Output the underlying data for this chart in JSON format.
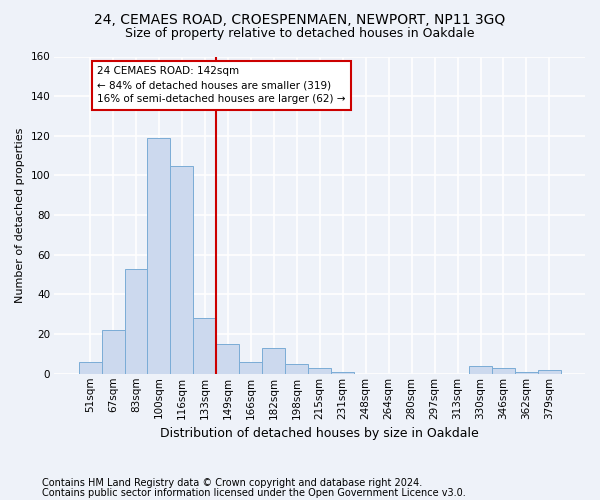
{
  "title1": "24, CEMAES ROAD, CROESPENMAEN, NEWPORT, NP11 3GQ",
  "title2": "Size of property relative to detached houses in Oakdale",
  "xlabel": "Distribution of detached houses by size in Oakdale",
  "ylabel": "Number of detached properties",
  "footnote1": "Contains HM Land Registry data © Crown copyright and database right 2024.",
  "footnote2": "Contains public sector information licensed under the Open Government Licence v3.0.",
  "bar_labels": [
    "51sqm",
    "67sqm",
    "83sqm",
    "100sqm",
    "116sqm",
    "133sqm",
    "149sqm",
    "166sqm",
    "182sqm",
    "198sqm",
    "215sqm",
    "231sqm",
    "248sqm",
    "264sqm",
    "280sqm",
    "297sqm",
    "313sqm",
    "330sqm",
    "346sqm",
    "362sqm",
    "379sqm"
  ],
  "bar_values": [
    6,
    22,
    53,
    119,
    105,
    28,
    15,
    6,
    13,
    5,
    3,
    1,
    0,
    0,
    0,
    0,
    0,
    4,
    3,
    1,
    2
  ],
  "bar_color": "#ccd9ee",
  "bar_edge_color": "#7aacd6",
  "vline_color": "#cc0000",
  "annotation_line1": "24 CEMAES ROAD: 142sqm",
  "annotation_line2": "← 84% of detached houses are smaller (319)",
  "annotation_line3": "16% of semi-detached houses are larger (62) →",
  "annotation_box_color": "#cc0000",
  "ylim": [
    0,
    160
  ],
  "yticks": [
    0,
    20,
    40,
    60,
    80,
    100,
    120,
    140,
    160
  ],
  "background_color": "#eef2f9",
  "grid_color": "#ffffff",
  "title1_fontsize": 10,
  "title2_fontsize": 9,
  "xlabel_fontsize": 9,
  "ylabel_fontsize": 8,
  "tick_fontsize": 7.5,
  "footnote_fontsize": 7
}
